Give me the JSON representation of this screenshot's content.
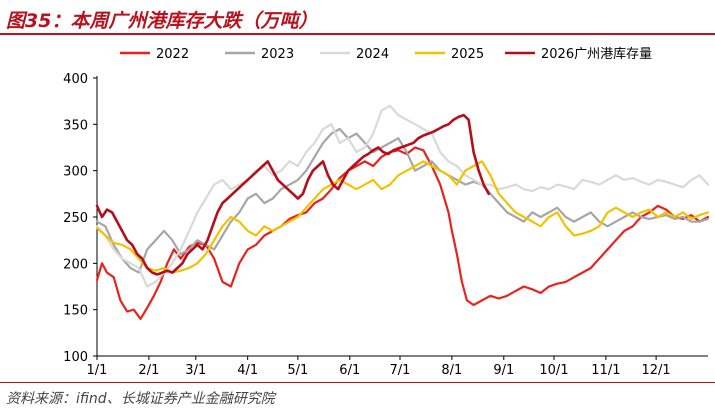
{
  "header": {
    "title": "图35：本周广州港库存大跌（万吨）"
  },
  "footer": {
    "source": "资料来源：ifind、长城证券产业金融研究院"
  },
  "chart_data": {
    "type": "line",
    "title": "图35：本周广州港库存大跌（万吨）",
    "xlabel": "",
    "ylabel": "",
    "ylim": [
      100,
      400
    ],
    "yticks": [
      100,
      150,
      200,
      250,
      300,
      350,
      400
    ],
    "xlim": [
      0,
      365
    ],
    "xtick_positions": [
      0,
      31,
      59,
      90,
      120,
      151,
      181,
      212,
      243,
      273,
      304,
      334
    ],
    "xtick_labels": [
      "1/1",
      "2/1",
      "3/1",
      "4/1",
      "5/1",
      "6/1",
      "7/1",
      "8/1",
      "9/1",
      "10/1",
      "11/1",
      "12/1"
    ],
    "grid": false,
    "legend_position": "top",
    "series": [
      {
        "name": "2022",
        "color": "#e8231e",
        "width": 2.2,
        "x": [
          0,
          3,
          6,
          10,
          14,
          18,
          22,
          26,
          30,
          34,
          38,
          42,
          46,
          50,
          55,
          60,
          65,
          70,
          75,
          80,
          85,
          90,
          95,
          100,
          105,
          110,
          115,
          120,
          125,
          130,
          135,
          140,
          145,
          150,
          155,
          160,
          165,
          170,
          175,
          180,
          185,
          190,
          195,
          200,
          205,
          210,
          212,
          215,
          218,
          221,
          225,
          230,
          235,
          240,
          245,
          250,
          255,
          260,
          265,
          270,
          275,
          280,
          285,
          290,
          295,
          300,
          305,
          310,
          315,
          320,
          325,
          330,
          335,
          340,
          345,
          350,
          355,
          360,
          365
        ],
        "y": [
          182,
          200,
          190,
          185,
          160,
          148,
          150,
          140,
          152,
          165,
          180,
          200,
          215,
          205,
          218,
          222,
          220,
          205,
          180,
          175,
          200,
          215,
          220,
          230,
          235,
          240,
          248,
          252,
          255,
          265,
          270,
          280,
          292,
          300,
          305,
          310,
          305,
          315,
          320,
          322,
          318,
          325,
          322,
          305,
          285,
          255,
          235,
          210,
          180,
          160,
          155,
          160,
          165,
          162,
          165,
          170,
          175,
          172,
          168,
          175,
          178,
          180,
          185,
          190,
          195,
          205,
          215,
          225,
          235,
          240,
          250,
          255,
          262,
          258,
          250,
          248,
          252,
          245,
          250
        ]
      },
      {
        "name": "2023",
        "color": "#a6a6a6",
        "width": 2.2,
        "x": [
          0,
          5,
          10,
          15,
          20,
          25,
          30,
          35,
          40,
          45,
          50,
          55,
          60,
          65,
          70,
          75,
          80,
          85,
          90,
          95,
          100,
          105,
          110,
          115,
          120,
          125,
          130,
          135,
          140,
          145,
          150,
          155,
          160,
          165,
          170,
          175,
          180,
          185,
          190,
          195,
          200,
          205,
          210,
          215,
          220,
          225,
          230,
          235,
          240,
          245,
          250,
          255,
          260,
          265,
          270,
          275,
          280,
          285,
          290,
          295,
          300,
          305,
          310,
          315,
          320,
          325,
          330,
          335,
          340,
          345,
          350,
          355,
          360,
          365
        ],
        "y": [
          245,
          240,
          220,
          205,
          195,
          190,
          215,
          225,
          235,
          225,
          210,
          215,
          225,
          220,
          215,
          230,
          245,
          255,
          270,
          275,
          265,
          270,
          280,
          285,
          290,
          300,
          315,
          330,
          340,
          345,
          335,
          340,
          330,
          320,
          325,
          330,
          335,
          320,
          300,
          305,
          310,
          300,
          295,
          290,
          285,
          288,
          285,
          275,
          265,
          255,
          250,
          245,
          255,
          250,
          255,
          260,
          250,
          245,
          250,
          255,
          245,
          240,
          245,
          250,
          255,
          250,
          248,
          250,
          252,
          248,
          250,
          245,
          245,
          248
        ]
      },
      {
        "name": "2024",
        "color": "#d9d9d9",
        "width": 2.2,
        "x": [
          0,
          5,
          10,
          15,
          20,
          25,
          30,
          35,
          40,
          45,
          50,
          55,
          60,
          65,
          70,
          75,
          80,
          85,
          90,
          95,
          100,
          105,
          110,
          115,
          120,
          125,
          130,
          135,
          140,
          145,
          150,
          155,
          160,
          165,
          170,
          175,
          180,
          185,
          190,
          195,
          200,
          205,
          210,
          215,
          220,
          225,
          230,
          235,
          240,
          245,
          250,
          255,
          260,
          265,
          270,
          275,
          280,
          285,
          290,
          295,
          300,
          305,
          310,
          315,
          320,
          325,
          330,
          335,
          340,
          345,
          350,
          355,
          360,
          365
        ],
        "y": [
          240,
          230,
          215,
          205,
          200,
          195,
          175,
          180,
          190,
          200,
          215,
          235,
          255,
          270,
          285,
          290,
          280,
          285,
          290,
          300,
          305,
          295,
          300,
          310,
          305,
          320,
          330,
          345,
          350,
          330,
          335,
          320,
          325,
          340,
          365,
          370,
          360,
          355,
          350,
          345,
          340,
          320,
          310,
          305,
          295,
          290,
          285,
          285,
          280,
          282,
          285,
          280,
          278,
          282,
          280,
          285,
          283,
          280,
          290,
          288,
          285,
          290,
          295,
          290,
          292,
          288,
          285,
          290,
          288,
          285,
          282,
          290,
          295,
          285
        ]
      },
      {
        "name": "2025",
        "color": "#f2c200",
        "width": 2.2,
        "x": [
          0,
          5,
          10,
          15,
          20,
          25,
          30,
          35,
          40,
          45,
          50,
          55,
          60,
          65,
          70,
          75,
          80,
          85,
          90,
          95,
          100,
          105,
          110,
          115,
          120,
          125,
          130,
          135,
          140,
          145,
          150,
          155,
          160,
          165,
          170,
          175,
          180,
          185,
          190,
          195,
          200,
          205,
          210,
          215,
          220,
          225,
          230,
          235,
          240,
          245,
          250,
          255,
          260,
          265,
          270,
          275,
          280,
          285,
          290,
          295,
          300,
          305,
          310,
          315,
          320,
          325,
          330,
          335,
          340,
          345,
          350,
          355,
          360,
          365
        ],
        "y": [
          238,
          230,
          222,
          220,
          215,
          205,
          195,
          192,
          195,
          190,
          192,
          195,
          200,
          210,
          225,
          240,
          250,
          245,
          235,
          230,
          240,
          235,
          240,
          245,
          250,
          260,
          270,
          280,
          285,
          290,
          285,
          280,
          285,
          290,
          280,
          285,
          295,
          300,
          305,
          310,
          305,
          300,
          295,
          285,
          300,
          305,
          310,
          295,
          275,
          265,
          255,
          250,
          245,
          240,
          250,
          255,
          240,
          230,
          232,
          235,
          240,
          255,
          260,
          255,
          250,
          255,
          258,
          250,
          255,
          250,
          255,
          248,
          252,
          255
        ]
      },
      {
        "name": "2026广州港库存量",
        "color": "#b40f1b",
        "width": 2.6,
        "x": [
          0,
          3,
          6,
          9,
          12,
          15,
          18,
          21,
          24,
          27,
          30,
          33,
          36,
          39,
          42,
          45,
          48,
          51,
          54,
          57,
          60,
          63,
          66,
          69,
          72,
          75,
          78,
          81,
          84,
          87,
          90,
          93,
          96,
          99,
          102,
          105,
          108,
          111,
          114,
          117,
          120,
          123,
          126,
          129,
          132,
          135,
          138,
          141,
          144,
          147,
          150,
          153,
          156,
          159,
          162,
          165,
          168,
          171,
          174,
          177,
          180,
          183,
          186,
          189,
          192,
          195,
          198,
          201,
          204,
          207,
          210,
          213,
          216,
          219,
          222,
          225,
          228,
          231,
          234
        ],
        "y": [
          262,
          250,
          258,
          255,
          245,
          235,
          225,
          220,
          210,
          205,
          195,
          190,
          188,
          190,
          192,
          190,
          195,
          200,
          210,
          215,
          220,
          215,
          225,
          240,
          255,
          265,
          270,
          275,
          280,
          285,
          290,
          295,
          300,
          305,
          310,
          300,
          290,
          285,
          280,
          275,
          270,
          275,
          290,
          300,
          305,
          310,
          295,
          285,
          280,
          290,
          300,
          305,
          310,
          315,
          318,
          322,
          325,
          320,
          318,
          322,
          324,
          326,
          328,
          330,
          335,
          338,
          340,
          342,
          345,
          348,
          350,
          355,
          358,
          360,
          355,
          320,
          300,
          285,
          275
        ]
      }
    ]
  }
}
